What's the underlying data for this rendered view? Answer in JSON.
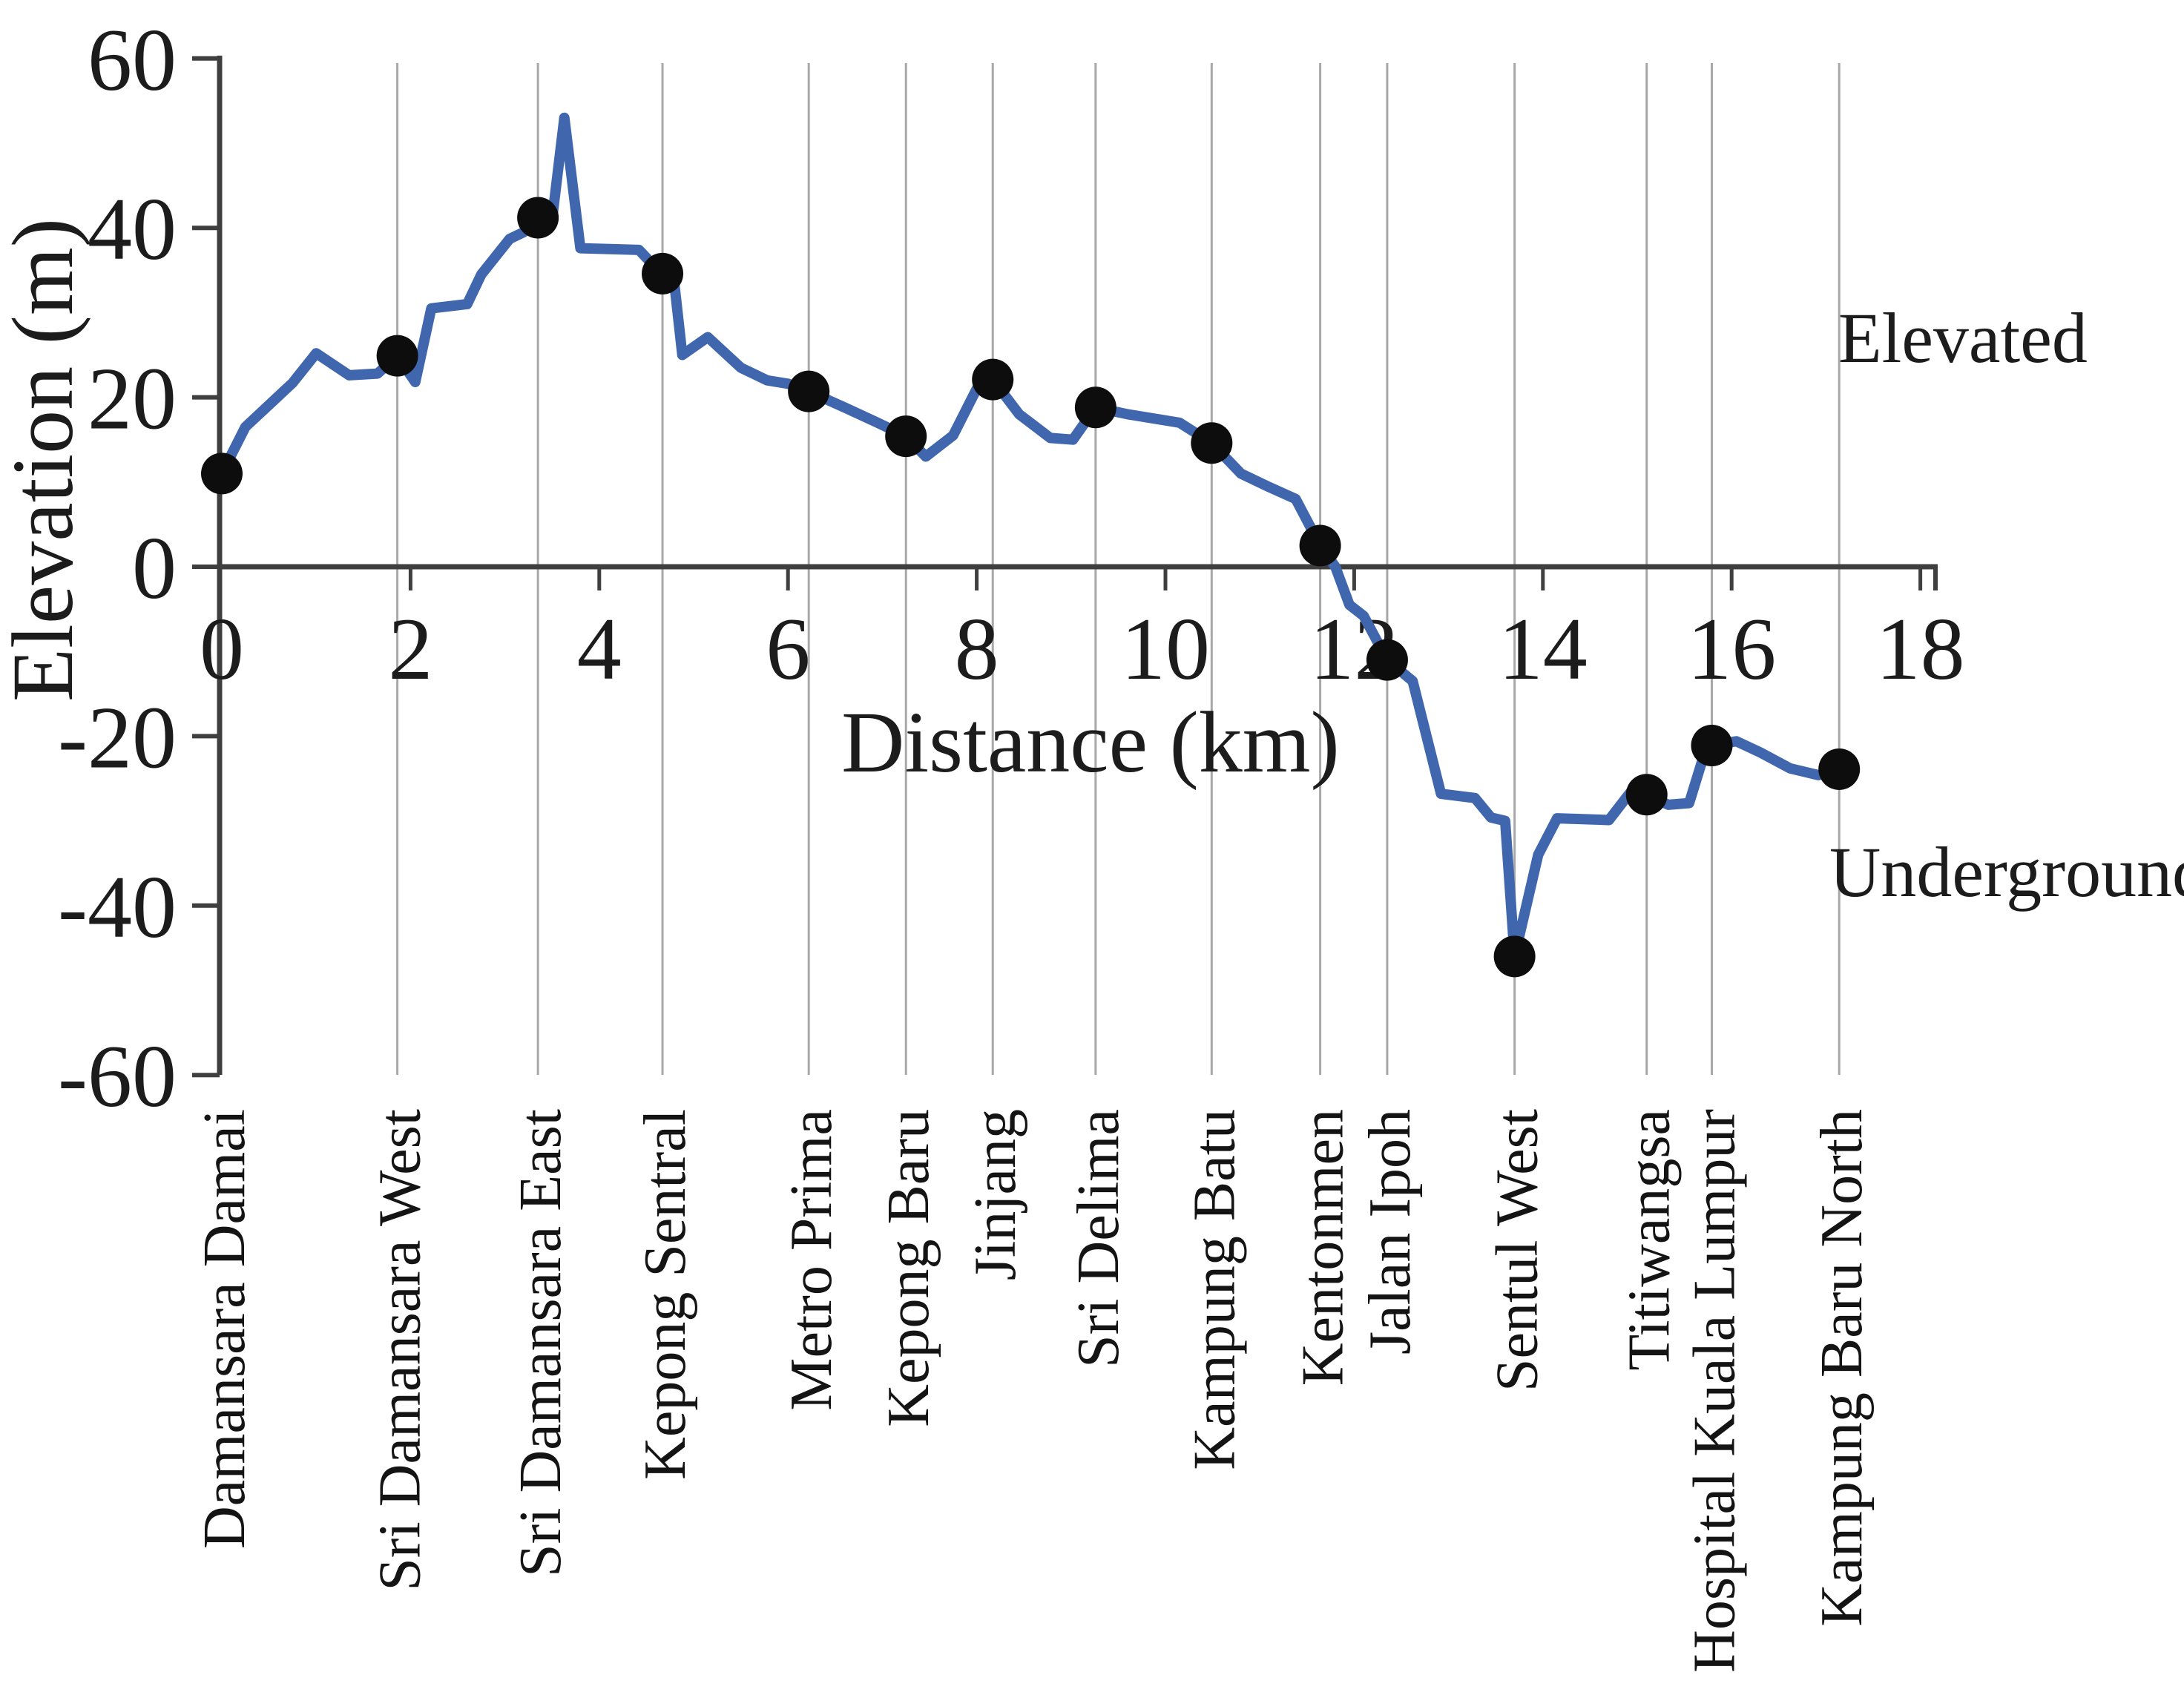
{
  "page": {
    "background": "#ffffff"
  },
  "chart_data": {
    "type": "line",
    "title": "",
    "xlabel": "Distance (km)",
    "ylabel": "Elevation (m)",
    "xlim": [
      0,
      18
    ],
    "ylim": [
      -60,
      60
    ],
    "x_ticks": [
      0,
      2,
      4,
      6,
      8,
      10,
      12,
      14,
      16,
      18
    ],
    "y_ticks": [
      60,
      40,
      20,
      0,
      -20,
      -40,
      -60
    ],
    "grid": "vertical-gridline-at-each-station",
    "legend": "none",
    "line_color": "#4066ad",
    "marker_color": "#0d0d0d",
    "gridline_color": "#a8a8a8",
    "axis_color": "#3f3f3f",
    "region_labels": [
      {
        "text": "Elevated"
      },
      {
        "text": "Underground"
      }
    ],
    "stations": [
      {
        "name": "Damansara Damai",
        "km": 0.0,
        "elevation_m": 11.0
      },
      {
        "name": "Sri Damansara West",
        "km": 1.86,
        "elevation_m": 24.9
      },
      {
        "name": "Sri Damansara East",
        "km": 3.35,
        "elevation_m": 41.2
      },
      {
        "name": "Kepong Sentral",
        "km": 4.67,
        "elevation_m": 34.6
      },
      {
        "name": "Metro Prima",
        "km": 6.22,
        "elevation_m": 20.7
      },
      {
        "name": "Kepong Baru",
        "km": 7.25,
        "elevation_m": 15.4
      },
      {
        "name": "Jinjang",
        "km": 8.17,
        "elevation_m": 22.1
      },
      {
        "name": "Sri Delima",
        "km": 9.26,
        "elevation_m": 18.8
      },
      {
        "name": "Kampung Batu",
        "km": 10.49,
        "elevation_m": 14.6
      },
      {
        "name": "Kentonmen",
        "km": 11.64,
        "elevation_m": 2.5
      },
      {
        "name": "Jalan Ipoh",
        "km": 12.35,
        "elevation_m": -11.0
      },
      {
        "name": "Sentul West",
        "km": 13.7,
        "elevation_m": -46.0
      },
      {
        "name": "Titiwangsa",
        "km": 15.1,
        "elevation_m": -26.9
      },
      {
        "name": "Hospital Kuala Lumpur",
        "km": 15.79,
        "elevation_m": -21.1
      },
      {
        "name": "Kampung Baru North",
        "km": 17.14,
        "elevation_m": -23.9
      }
    ],
    "profile": [
      [
        0.0,
        11.0
      ],
      [
        0.25,
        16.5
      ],
      [
        0.75,
        21.7
      ],
      [
        1.0,
        25.2
      ],
      [
        1.35,
        22.6
      ],
      [
        1.65,
        22.8
      ],
      [
        1.86,
        24.9
      ],
      [
        2.05,
        21.8
      ],
      [
        2.22,
        30.5
      ],
      [
        2.6,
        31.0
      ],
      [
        2.75,
        34.5
      ],
      [
        3.05,
        38.7
      ],
      [
        3.2,
        39.5
      ],
      [
        3.35,
        41.2
      ],
      [
        3.5,
        41.0
      ],
      [
        3.63,
        53.0
      ],
      [
        3.8,
        37.6
      ],
      [
        4.42,
        37.4
      ],
      [
        4.6,
        35.3
      ],
      [
        4.67,
        34.6
      ],
      [
        4.8,
        33.0
      ],
      [
        4.88,
        25.0
      ],
      [
        5.15,
        27.1
      ],
      [
        5.5,
        23.5
      ],
      [
        5.78,
        22.0
      ],
      [
        6.0,
        21.6
      ],
      [
        6.22,
        20.7
      ],
      [
        6.6,
        18.8
      ],
      [
        6.95,
        17.0
      ],
      [
        7.25,
        15.4
      ],
      [
        7.46,
        13.0
      ],
      [
        7.75,
        15.5
      ],
      [
        8.0,
        21.0
      ],
      [
        8.17,
        22.1
      ],
      [
        8.45,
        18.0
      ],
      [
        8.78,
        15.2
      ],
      [
        9.02,
        15.0
      ],
      [
        9.26,
        18.8
      ],
      [
        9.6,
        18.0
      ],
      [
        10.15,
        17.0
      ],
      [
        10.49,
        14.6
      ],
      [
        10.8,
        11.0
      ],
      [
        11.1,
        9.4
      ],
      [
        11.38,
        8.0
      ],
      [
        11.64,
        2.5
      ],
      [
        11.8,
        0.0
      ],
      [
        11.95,
        -4.5
      ],
      [
        12.1,
        -5.8
      ],
      [
        12.35,
        -11.0
      ],
      [
        12.62,
        -13.5
      ],
      [
        12.92,
        -26.8
      ],
      [
        13.28,
        -27.3
      ],
      [
        13.45,
        -29.6
      ],
      [
        13.6,
        -30.0
      ],
      [
        13.7,
        -46.0
      ],
      [
        13.95,
        -34.0
      ],
      [
        14.15,
        -29.7
      ],
      [
        14.7,
        -29.9
      ],
      [
        14.95,
        -26.3
      ],
      [
        15.1,
        -26.9
      ],
      [
        15.33,
        -28.1
      ],
      [
        15.55,
        -27.9
      ],
      [
        15.68,
        -23.2
      ],
      [
        15.79,
        -21.1
      ],
      [
        16.05,
        -20.6
      ],
      [
        16.3,
        -21.9
      ],
      [
        16.62,
        -23.8
      ],
      [
        16.92,
        -24.6
      ],
      [
        17.14,
        -23.9
      ]
    ]
  }
}
